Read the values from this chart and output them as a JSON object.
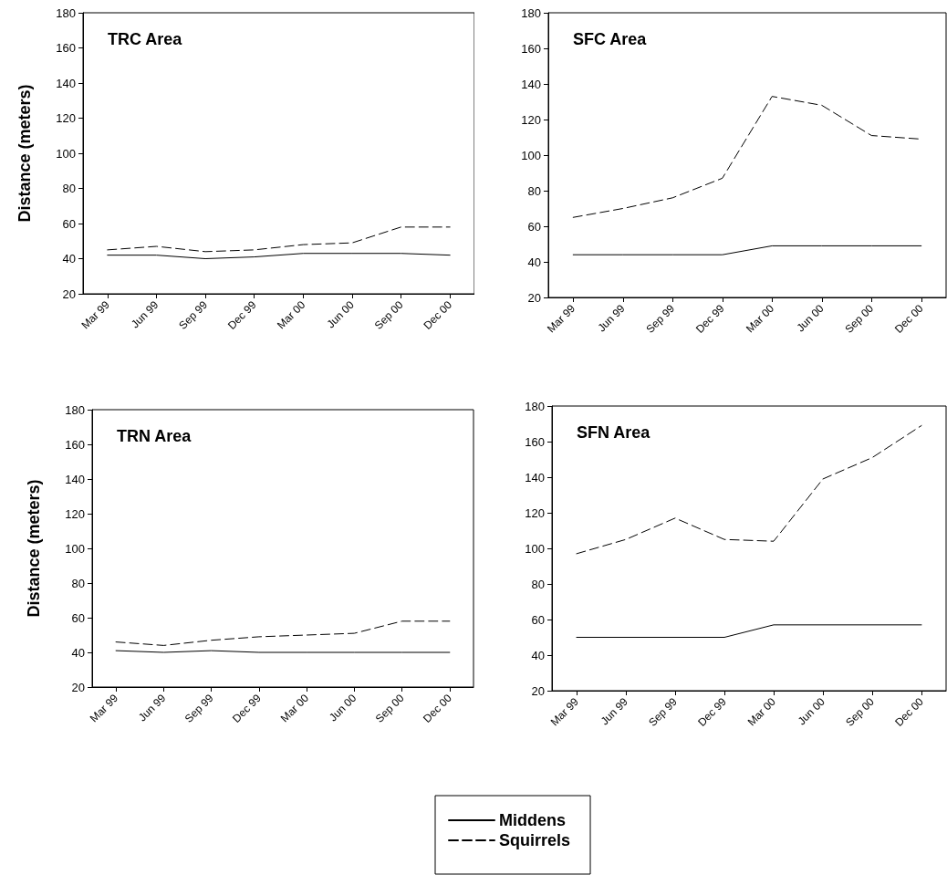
{
  "chart_data": [
    {
      "type": "line",
      "title": "TRC Area",
      "ylabel": "Distance (meters)",
      "categories": [
        "Mar 99",
        "Jun 99",
        "Sep 99",
        "Dec 99",
        "Mar 00",
        "Jun 00",
        "Sep 00",
        "Dec 00"
      ],
      "ylim": [
        20,
        180
      ],
      "yticks": [
        20,
        40,
        60,
        80,
        100,
        120,
        140,
        160,
        180
      ],
      "marker": "none",
      "grid": false,
      "series": [
        {
          "color": "#000000",
          "line_style": "solid",
          "values": [
            42,
            42,
            40,
            41,
            43,
            43,
            43,
            42
          ]
        },
        {
          "color": "#000000",
          "line_style": "dashed",
          "values": [
            45,
            47,
            44,
            45,
            48,
            49,
            58,
            58
          ]
        }
      ]
    },
    {
      "type": "line",
      "title": "SFC Area",
      "categories": [
        "Mar 99",
        "Jun 99",
        "Sep 99",
        "Dec 99",
        "Mar 00",
        "Jun 00",
        "Sep 00",
        "Dec 00"
      ],
      "ylim": [
        20,
        180
      ],
      "yticks": [
        20,
        40,
        60,
        80,
        100,
        120,
        140,
        160,
        180
      ],
      "marker": "none",
      "grid": false,
      "series": [
        {
          "color": "#000000",
          "line_style": "solid",
          "values": [
            44,
            44,
            44,
            44,
            49,
            49,
            49,
            49
          ]
        },
        {
          "color": "#000000",
          "line_style": "dashed",
          "values": [
            65,
            70,
            76,
            87,
            133,
            128,
            111,
            109
          ]
        }
      ]
    },
    {
      "type": "line",
      "title": "TRN Area",
      "ylabel": "Distance (meters)",
      "categories": [
        "Mar 99",
        "Jun 99",
        "Sep 99",
        "Dec 99",
        "Mar 00",
        "Jun 00",
        "Sep 00",
        "Dec 00"
      ],
      "ylim": [
        20,
        180
      ],
      "yticks": [
        20,
        40,
        60,
        80,
        100,
        120,
        140,
        160,
        180
      ],
      "marker": "none",
      "grid": false,
      "series": [
        {
          "color": "#000000",
          "line_style": "solid",
          "values": [
            41,
            40,
            41,
            40,
            40,
            40,
            40,
            40
          ]
        },
        {
          "color": "#000000",
          "line_style": "dashed",
          "values": [
            46,
            44,
            47,
            49,
            50,
            51,
            58,
            58
          ]
        }
      ]
    },
    {
      "type": "line",
      "title": "SFN Area",
      "categories": [
        "Mar 99",
        "Jun 99",
        "Sep 99",
        "Dec 99",
        "Mar 00",
        "Jun 00",
        "Sep 00",
        "Dec 00"
      ],
      "ylim": [
        20,
        180
      ],
      "yticks": [
        20,
        40,
        60,
        80,
        100,
        120,
        140,
        160,
        180
      ],
      "marker": "none",
      "grid": false,
      "legend": "bottom",
      "series": [
        {
          "name": "Middens",
          "color": "#000000",
          "line_style": "solid",
          "values": [
            50,
            50,
            50,
            50,
            57,
            57,
            57,
            57
          ]
        },
        {
          "name": "Squirrels",
          "color": "#000000",
          "line_style": "dashed",
          "values": [
            97,
            105,
            117,
            105,
            104,
            139,
            151,
            169
          ]
        }
      ]
    }
  ]
}
